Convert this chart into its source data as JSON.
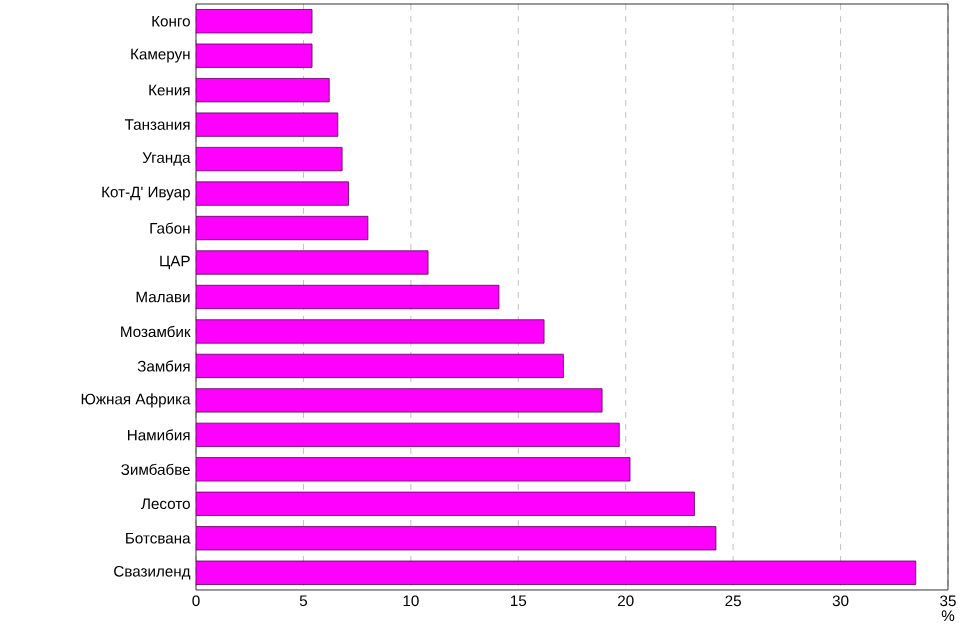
{
  "chart_data": {
    "type": "bar",
    "orientation": "horizontal",
    "categories": [
      "Конго",
      "Камерун",
      "Кения",
      "Танзания",
      "Уганда",
      "Кот-Д' Ивуар",
      "Габон",
      "ЦАР",
      "Малави",
      "Мозамбик",
      "Замбия",
      "Южная Африка",
      "Намибия",
      "Зимбабве",
      "Лесото",
      "Ботсвана",
      "Свазиленд"
    ],
    "values": [
      5.4,
      5.4,
      6.2,
      6.6,
      6.8,
      7.1,
      8.0,
      10.8,
      14.1,
      16.2,
      17.1,
      18.9,
      19.7,
      20.2,
      23.2,
      24.2,
      33.5
    ],
    "color": "#ff00ff",
    "xlabel": "%",
    "xlim": [
      0,
      35
    ],
    "xticks": [
      0,
      5,
      10,
      15,
      20,
      25,
      30,
      35
    ],
    "grid": "x"
  }
}
